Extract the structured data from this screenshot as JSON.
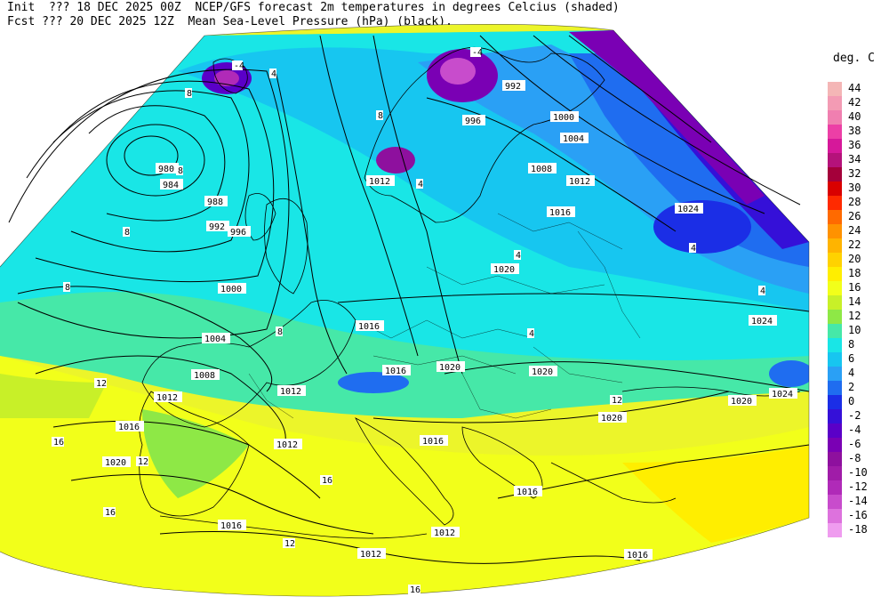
{
  "header": {
    "line1": "Init  ??? 18 DEC 2025 00Z  NCEP/GFS forecast 2m temperatures in degrees Celcius (shaded)",
    "line2": "Fcst ??? 20 DEC 2025 12Z  Mean Sea-Level Pressure (hPa) (black)."
  },
  "legend": {
    "title": "deg. C",
    "items": [
      {
        "label": "44",
        "color": "#f4b6b6"
      },
      {
        "label": "42",
        "color": "#f39bb4"
      },
      {
        "label": "40",
        "color": "#f07fb0"
      },
      {
        "label": "38",
        "color": "#ec3fa6"
      },
      {
        "label": "36",
        "color": "#d6189a"
      },
      {
        "label": "34",
        "color": "#b5127a"
      },
      {
        "label": "32",
        "color": "#a4003a"
      },
      {
        "label": "30",
        "color": "#d90000"
      },
      {
        "label": "28",
        "color": "#ff2a00"
      },
      {
        "label": "26",
        "color": "#ff6a00"
      },
      {
        "label": "24",
        "color": "#ff9200"
      },
      {
        "label": "22",
        "color": "#ffb400"
      },
      {
        "label": "20",
        "color": "#ffd200"
      },
      {
        "label": "18",
        "color": "#ffee00"
      },
      {
        "label": "16",
        "color": "#f2ff1a"
      },
      {
        "label": "14",
        "color": "#c8f028"
      },
      {
        "label": "12",
        "color": "#8ee846"
      },
      {
        "label": "10",
        "color": "#46e8a8"
      },
      {
        "label": "8",
        "color": "#19e6e6"
      },
      {
        "label": "6",
        "color": "#17c6f0"
      },
      {
        "label": "4",
        "color": "#2aa0f5"
      },
      {
        "label": "2",
        "color": "#1f6df0"
      },
      {
        "label": "0",
        "color": "#1b2ee6"
      },
      {
        "label": "-2",
        "color": "#3510d8"
      },
      {
        "label": "-4",
        "color": "#5a00c8"
      },
      {
        "label": "-6",
        "color": "#7a00b4"
      },
      {
        "label": "-8",
        "color": "#8e109e"
      },
      {
        "label": "-10",
        "color": "#a01ca8"
      },
      {
        "label": "-12",
        "color": "#b02ab8"
      },
      {
        "label": "-14",
        "color": "#c84ccc"
      },
      {
        "label": "-16",
        "color": "#dd72dd"
      },
      {
        "label": "-18",
        "color": "#ef9cef"
      }
    ]
  },
  "pressure_labels": [
    "980",
    "984",
    "988",
    "992",
    "996",
    "1000",
    "1004",
    "1008",
    "1012",
    "1016",
    "1020",
    "1024"
  ],
  "temp_labels": [
    "-4",
    "4",
    "8",
    "12",
    "16"
  ]
}
